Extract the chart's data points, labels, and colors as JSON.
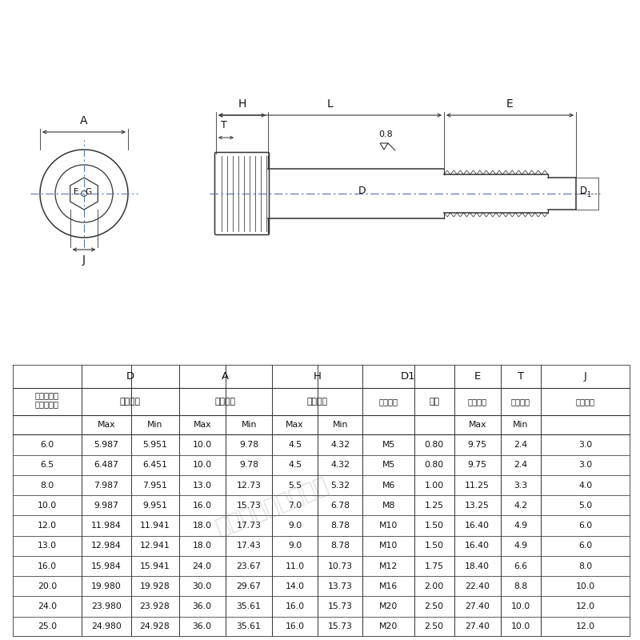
{
  "bg_color": "#ffffff",
  "draw_bg": "#f0f0eb",
  "rows": [
    [
      "6.0",
      "5.987",
      "5.951",
      "10.0",
      "9.78",
      "4.5",
      "4.32",
      "M5",
      "0.80",
      "9.75",
      "2.4",
      "3.0"
    ],
    [
      "6.5",
      "6.487",
      "6.451",
      "10.0",
      "9.78",
      "4.5",
      "4.32",
      "M5",
      "0.80",
      "9.75",
      "2.4",
      "3.0"
    ],
    [
      "8.0",
      "7.987",
      "7.951",
      "13.0",
      "12.73",
      "5.5",
      "5.32",
      "M6",
      "1.00",
      "11.25",
      "3.3",
      "4.0"
    ],
    [
      "10.0",
      "9.987",
      "9.951",
      "16.0",
      "15.73",
      "7.0",
      "6.78",
      "M8",
      "1.25",
      "13.25",
      "4.2",
      "5.0"
    ],
    [
      "12.0",
      "11.984",
      "11.941",
      "18.0",
      "17.73",
      "9.0",
      "8.78",
      "M10",
      "1.50",
      "16.40",
      "4.9",
      "6.0"
    ],
    [
      "13.0",
      "12.984",
      "12.941",
      "18.0",
      "17.43",
      "9.0",
      "8.78",
      "M10",
      "1.50",
      "16.40",
      "4.9",
      "6.0"
    ],
    [
      "16.0",
      "15.984",
      "15.941",
      "24.0",
      "23.67",
      "11.0",
      "10.73",
      "M12",
      "1.75",
      "18.40",
      "6.6",
      "8.0"
    ],
    [
      "20.0",
      "19.980",
      "19.928",
      "30.0",
      "29.67",
      "14.0",
      "13.73",
      "M16",
      "2.00",
      "22.40",
      "8.8",
      "10.0"
    ],
    [
      "24.0",
      "23.980",
      "23.928",
      "36.0",
      "35.61",
      "16.0",
      "15.73",
      "M20",
      "2.50",
      "27.40",
      "10.0",
      "12.0"
    ],
    [
      "25.0",
      "24.980",
      "24.928",
      "36.0",
      "35.61",
      "16.0",
      "15.73",
      "M20",
      "2.50",
      "27.40",
      "10.0",
      "12.0"
    ]
  ],
  "line_color": "#333333",
  "text_color": "#111111",
  "watermark": "盛精密零件有限公司"
}
